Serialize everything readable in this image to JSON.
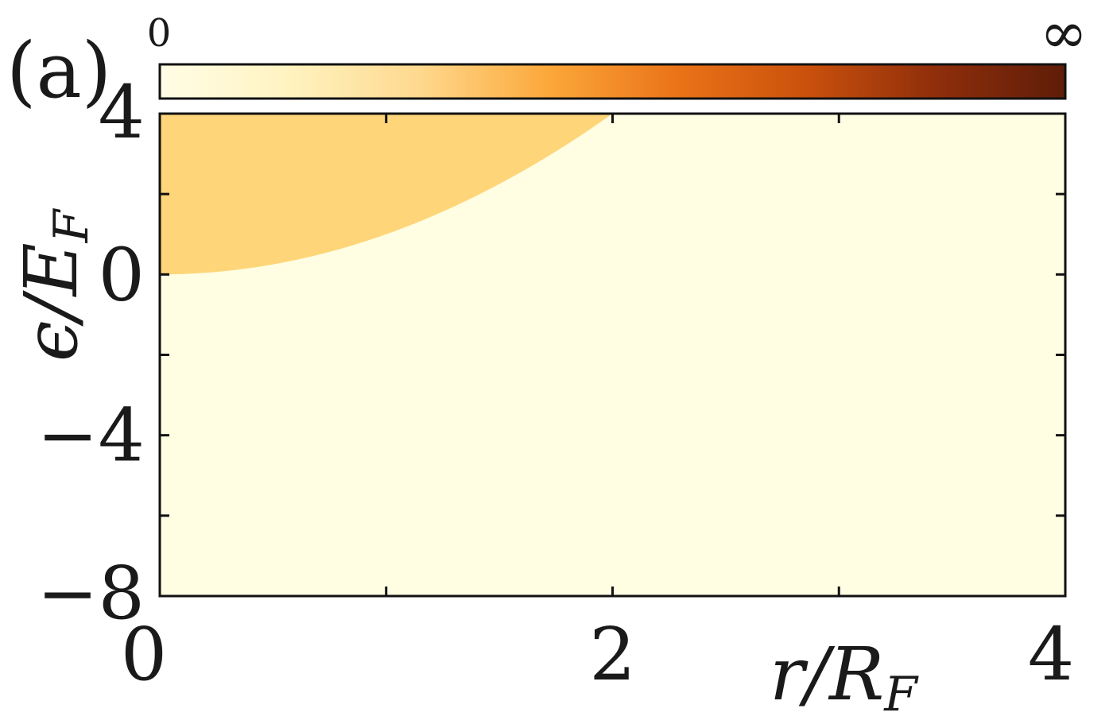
{
  "panel_label": "(a)",
  "colorbar": {
    "min_label": "0",
    "max_label": "∞",
    "colors": [
      "#fffde6",
      "#fff3c0",
      "#fed98e",
      "#fca83a",
      "#ea7318",
      "#c9510c",
      "#8f2e0b",
      "#5e1d08"
    ]
  },
  "chart_data": {
    "type": "heatmap",
    "title": "",
    "xlabel": "r/R_F",
    "ylabel": "ϵ/E_F",
    "xlim": [
      0,
      4
    ],
    "ylim": [
      -8,
      4
    ],
    "x_ticks": [
      0,
      2,
      4
    ],
    "x_tick_labels": [
      "0",
      "2",
      "4"
    ],
    "y_ticks": [
      -8,
      -4,
      0,
      4
    ],
    "y_tick_labels": [
      "−8",
      "−4",
      "0",
      "4"
    ],
    "x_minor_ticks": [
      1,
      3
    ],
    "y_minor_ticks": [
      -6,
      -2,
      2
    ],
    "regions": [
      {
        "name": "",
        "boundary": "ϵ/E_F = (r/R_F)^2, 0 ≤ r/R_F ≤ 2",
        "value_level": 0.35,
        "color": "#fed679"
      },
      {
        "name": "",
        "value_level": 0.0,
        "color": "#fffee3"
      }
    ]
  }
}
